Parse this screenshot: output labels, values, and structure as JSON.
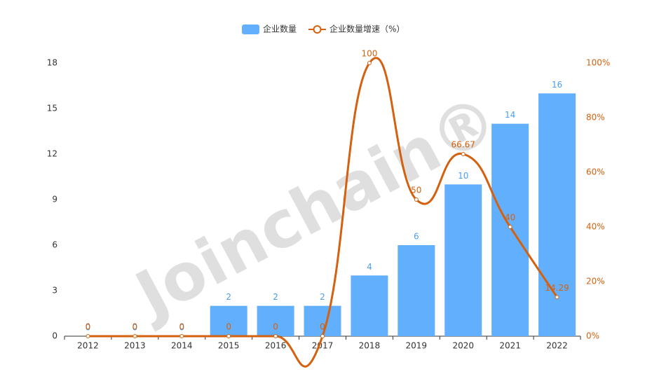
{
  "chart_data": {
    "type": "combo",
    "watermark": "Joinchain®",
    "categories": [
      "2012",
      "2013",
      "2014",
      "2015",
      "2016",
      "2017",
      "2018",
      "2019",
      "2020",
      "2021",
      "2022"
    ],
    "series": [
      {
        "name": "企业数量",
        "type": "bar",
        "color": "#62b0fd",
        "label_color": "#4a9fee",
        "values": [
          0,
          0,
          0,
          2,
          2,
          2,
          4,
          6,
          10,
          14,
          16
        ]
      },
      {
        "name": "企业数量增速（%）",
        "type": "line",
        "axis": "y2",
        "color": "#d4610f",
        "values": [
          0,
          0,
          0,
          0,
          0,
          0,
          100,
          50,
          66.67,
          40,
          14.29
        ]
      }
    ],
    "ylim": [
      0,
      18
    ],
    "yticks": [
      0,
      3,
      6,
      9,
      12,
      15,
      18
    ],
    "y2lim": [
      0,
      100
    ],
    "y2ticks": [
      {
        "value": 0,
        "label": "0%"
      },
      {
        "value": 20,
        "label": "20%"
      },
      {
        "value": 40,
        "label": "40%"
      },
      {
        "value": 60,
        "label": "60%"
      },
      {
        "value": 80,
        "label": "80%"
      },
      {
        "value": 100,
        "label": "100%"
      }
    ],
    "grid": false,
    "legend": "top"
  }
}
